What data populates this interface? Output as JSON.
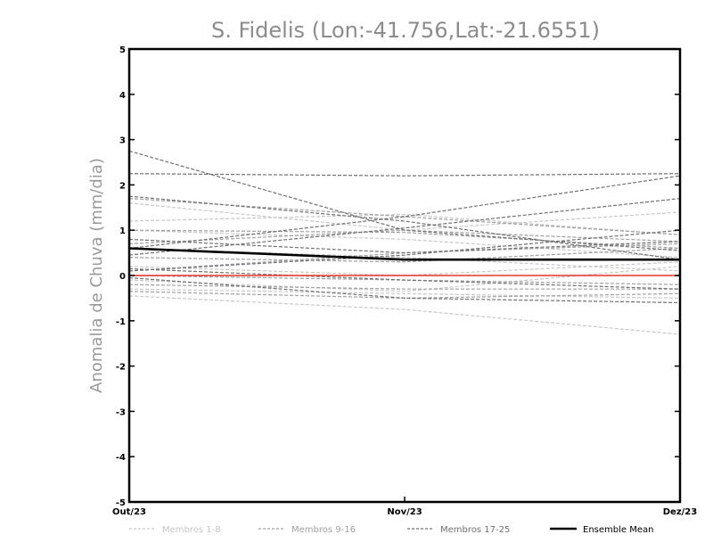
{
  "chart_data": {
    "type": "line",
    "title": "S. Fidelis (Lon:-41.756,Lat:-21.6551)",
    "xlabel": "",
    "ylabel": "Anomalia de Chuva (mm/dia)",
    "categories": [
      "Out/23",
      "Nov/23",
      "Dez/23"
    ],
    "ylim": [
      -5,
      5
    ],
    "yticks": [
      "-5",
      "-4",
      "-3",
      "-2",
      "-1",
      "0",
      "1",
      "2",
      "3",
      "4",
      "5"
    ],
    "grid": false,
    "legend_position": "bottom",
    "zero_line_color": "#e8302a",
    "groups": [
      {
        "name": "Membros 1-8",
        "color": "#c8c8c8"
      },
      {
        "name": "Membros 9-16",
        "color": "#a0a0a0"
      },
      {
        "name": "Membros 17-25",
        "color": "#707070"
      },
      {
        "name": "Ensemble Mean",
        "color": "#000000"
      }
    ],
    "series": [
      {
        "group": 0,
        "values": [
          1.6,
          1.0,
          1.4
        ]
      },
      {
        "group": 0,
        "values": [
          1.2,
          1.35,
          0.9
        ]
      },
      {
        "group": 0,
        "values": [
          1.0,
          0.8,
          0.4
        ]
      },
      {
        "group": 0,
        "values": [
          0.6,
          0.4,
          0.1
        ]
      },
      {
        "group": 0,
        "values": [
          0.2,
          0.0,
          0.3
        ]
      },
      {
        "group": 0,
        "values": [
          -0.1,
          -0.35,
          0.2
        ]
      },
      {
        "group": 0,
        "values": [
          -0.3,
          -0.4,
          -0.5
        ]
      },
      {
        "group": 0,
        "values": [
          -0.45,
          -0.75,
          -1.3
        ]
      },
      {
        "group": 1,
        "values": [
          1.7,
          1.3,
          0.9
        ]
      },
      {
        "group": 1,
        "values": [
          1.0,
          0.95,
          0.6
        ]
      },
      {
        "group": 1,
        "values": [
          0.7,
          1.0,
          0.75
        ]
      },
      {
        "group": 1,
        "values": [
          0.4,
          0.3,
          0.6
        ]
      },
      {
        "group": 1,
        "values": [
          0.1,
          0.5,
          0.7
        ]
      },
      {
        "group": 1,
        "values": [
          0.0,
          -0.1,
          -0.2
        ]
      },
      {
        "group": 1,
        "values": [
          -0.2,
          -0.3,
          -0.3
        ]
      },
      {
        "group": 1,
        "values": [
          -0.35,
          -0.5,
          -0.4
        ]
      },
      {
        "group": 2,
        "values": [
          2.75,
          1.0,
          0.55
        ]
      },
      {
        "group": 2,
        "values": [
          2.25,
          2.2,
          2.25
        ]
      },
      {
        "group": 2,
        "values": [
          1.75,
          1.2,
          0.35
        ]
      },
      {
        "group": 2,
        "values": [
          0.8,
          0.5,
          0.75
        ]
      },
      {
        "group": 2,
        "values": [
          0.6,
          1.3,
          2.2
        ]
      },
      {
        "group": 2,
        "values": [
          0.45,
          1.05,
          1.7
        ]
      },
      {
        "group": 2,
        "values": [
          0.15,
          -0.1,
          -0.3
        ]
      },
      {
        "group": 2,
        "values": [
          -0.05,
          -0.5,
          -0.6
        ]
      },
      {
        "group": 2,
        "values": [
          0.1,
          0.45,
          1.0
        ]
      }
    ],
    "mean": {
      "name": "Ensemble Mean",
      "values": [
        0.6,
        0.35,
        0.35
      ]
    },
    "zero_series": [
      0,
      0,
      0
    ]
  }
}
